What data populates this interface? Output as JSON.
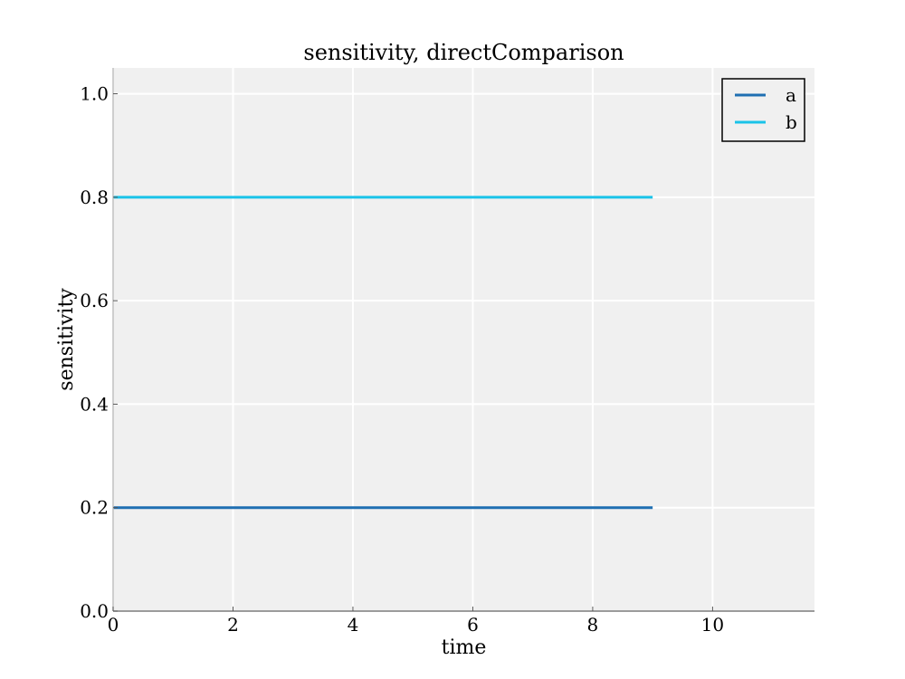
{
  "chart_data": {
    "type": "line",
    "title": "sensitivity, directComparison",
    "xlabel": "time",
    "ylabel": "sensitivity",
    "xlim": [
      0,
      11.7
    ],
    "ylim": [
      0.0,
      1.05
    ],
    "xticks": [
      0,
      2,
      4,
      6,
      8,
      10
    ],
    "yticks": [
      0.0,
      0.2,
      0.4,
      0.6,
      0.8,
      1.0
    ],
    "xtick_labels": [
      "0",
      "2",
      "4",
      "6",
      "8",
      "10"
    ],
    "ytick_labels": [
      "0.0",
      "0.2",
      "0.4",
      "0.6",
      "0.8",
      "1.0"
    ],
    "grid": true,
    "legend_position": "top-right",
    "background_color": "#f0f0f0",
    "grid_color": "#ffffff",
    "series": [
      {
        "name": "a",
        "color": "#1f6fb2",
        "x": [
          0,
          9
        ],
        "y": [
          0.2,
          0.2
        ]
      },
      {
        "name": "b",
        "color": "#1ac3e8",
        "x": [
          0,
          9
        ],
        "y": [
          0.8,
          0.8
        ]
      }
    ]
  }
}
